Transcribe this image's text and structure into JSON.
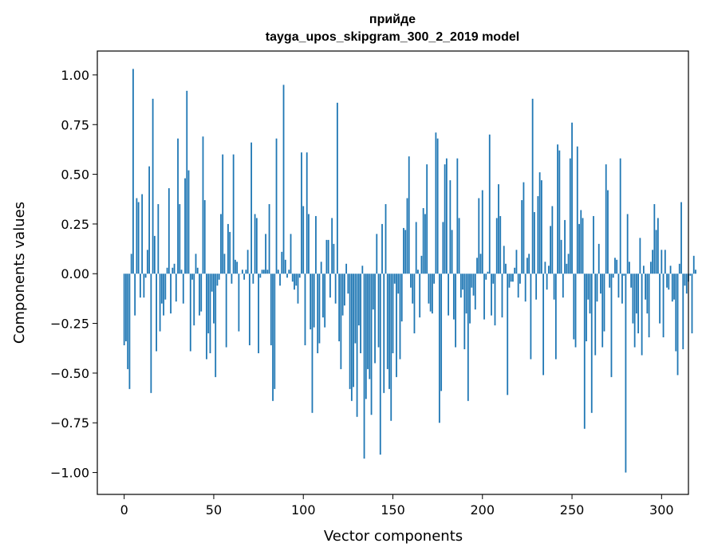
{
  "chart_data": {
    "type": "bar",
    "title_line1": "прийде",
    "title_line2": "tayga_upos_skipgram_300_2_2019 model",
    "xlabel": "Vector components",
    "ylabel": "Components values",
    "xlim": [
      -15,
      315
    ],
    "ylim": [
      -1.11,
      1.12
    ],
    "xticks": [
      0,
      50,
      100,
      150,
      200,
      250,
      300
    ],
    "xtick_labels": [
      "0",
      "50",
      "100",
      "150",
      "200",
      "250",
      "300"
    ],
    "yticks": [
      1.0,
      0.75,
      0.5,
      0.25,
      0.0,
      -0.25,
      -0.5,
      -0.75,
      -1.0
    ],
    "ytick_labels": [
      "1.00",
      "0.75",
      "0.50",
      "0.25",
      "0.00",
      "−0.25",
      "−0.50",
      "−0.75",
      "−1.00"
    ],
    "bar_color": "#1f77b4",
    "grid": false,
    "values": [
      -0.36,
      -0.34,
      -0.48,
      -0.58,
      0.1,
      1.03,
      -0.21,
      0.38,
      0.36,
      -0.12,
      0.4,
      -0.12,
      -0.02,
      0.12,
      0.54,
      -0.6,
      0.88,
      0.19,
      -0.39,
      0.35,
      -0.29,
      -0.15,
      -0.21,
      -0.13,
      0.03,
      0.43,
      -0.2,
      0.03,
      0.05,
      -0.14,
      0.68,
      0.35,
      0.02,
      -0.15,
      0.48,
      0.92,
      0.52,
      -0.39,
      -0.03,
      -0.26,
      0.1,
      0.03,
      -0.21,
      -0.19,
      0.69,
      0.37,
      -0.43,
      -0.3,
      -0.4,
      -0.09,
      -0.25,
      -0.52,
      -0.06,
      -0.03,
      0.3,
      0.6,
      0.1,
      -0.37,
      0.25,
      0.21,
      -0.05,
      0.6,
      0.07,
      0.06,
      -0.29,
      0.0,
      0.02,
      -0.03,
      0.02,
      0.12,
      -0.36,
      0.66,
      -0.05,
      0.3,
      0.28,
      -0.4,
      -0.02,
      0.02,
      0.02,
      0.2,
      0.02,
      0.35,
      -0.36,
      -0.64,
      -0.58,
      0.68,
      0.02,
      -0.06,
      0.11,
      0.95,
      0.07,
      -0.02,
      0.02,
      0.2,
      -0.04,
      -0.08,
      -0.06,
      -0.15,
      -0.02,
      0.61,
      0.34,
      -0.36,
      0.61,
      0.3,
      -0.28,
      -0.7,
      -0.27,
      0.29,
      -0.4,
      -0.35,
      0.06,
      -0.22,
      -0.27,
      0.17,
      0.17,
      -0.12,
      0.28,
      0.15,
      -0.15,
      0.86,
      -0.34,
      -0.48,
      -0.21,
      -0.16,
      0.05,
      -0.1,
      -0.58,
      -0.64,
      -0.57,
      -0.35,
      -0.72,
      -0.26,
      -0.4,
      0.04,
      -0.93,
      -0.63,
      -0.48,
      -0.53,
      -0.71,
      -0.18,
      -0.45,
      0.2,
      -0.37,
      -0.91,
      0.25,
      -0.6,
      0.35,
      -0.48,
      -0.58,
      -0.74,
      -0.4,
      -0.05,
      -0.52,
      -0.1,
      -0.43,
      -0.24,
      0.23,
      0.22,
      0.38,
      0.59,
      -0.07,
      -0.15,
      -0.3,
      0.26,
      0.02,
      -0.22,
      0.09,
      0.33,
      0.3,
      0.55,
      -0.15,
      -0.19,
      -0.2,
      -0.05,
      0.71,
      0.68,
      -0.75,
      -0.59,
      0.26,
      0.55,
      0.58,
      -0.21,
      0.47,
      0.22,
      -0.23,
      -0.37,
      0.58,
      0.28,
      -0.12,
      -0.08,
      -0.38,
      -0.2,
      -0.64,
      -0.25,
      -0.07,
      -0.11,
      -0.18,
      0.08,
      0.38,
      0.1,
      0.42,
      -0.23,
      -0.03,
      0.01,
      0.7,
      -0.21,
      -0.05,
      -0.26,
      0.28,
      0.45,
      0.29,
      -0.22,
      0.14,
      0.05,
      -0.61,
      -0.07,
      -0.04,
      -0.04,
      0.03,
      0.12,
      -0.12,
      -0.05,
      0.37,
      0.46,
      -0.14,
      0.08,
      0.1,
      -0.43,
      0.88,
      0.31,
      -0.13,
      0.39,
      0.51,
      0.47,
      -0.51,
      0.06,
      -0.08,
      0.04,
      0.24,
      0.34,
      -0.13,
      -0.43,
      0.65,
      0.62,
      0.17,
      -0.12,
      0.27,
      0.05,
      0.1,
      0.58,
      0.76,
      -0.33,
      -0.37,
      0.64,
      0.25,
      0.32,
      0.28,
      -0.78,
      -0.34,
      -0.13,
      -0.2,
      -0.7,
      0.29,
      -0.41,
      -0.14,
      0.15,
      -0.1,
      -0.37,
      -0.29,
      0.55,
      0.42,
      -0.07,
      -0.52,
      -0.02,
      0.08,
      0.07,
      -0.12,
      0.58,
      -0.15,
      -0.01,
      -1.0,
      0.3,
      0.06,
      -0.07,
      -0.25,
      -0.37,
      -0.2,
      -0.3,
      0.18,
      -0.41,
      0.04,
      -0.13,
      -0.2,
      -0.32,
      0.06,
      0.12,
      0.35,
      0.22,
      0.28,
      -0.25,
      0.12,
      -0.32,
      0.12,
      -0.07,
      -0.08,
      0.04,
      -0.14,
      -0.13,
      -0.39,
      -0.51,
      0.05,
      0.36,
      -0.38,
      -0.06,
      -0.1,
      -0.04,
      -0.01,
      -0.3,
      0.09,
      0.02
    ]
  }
}
